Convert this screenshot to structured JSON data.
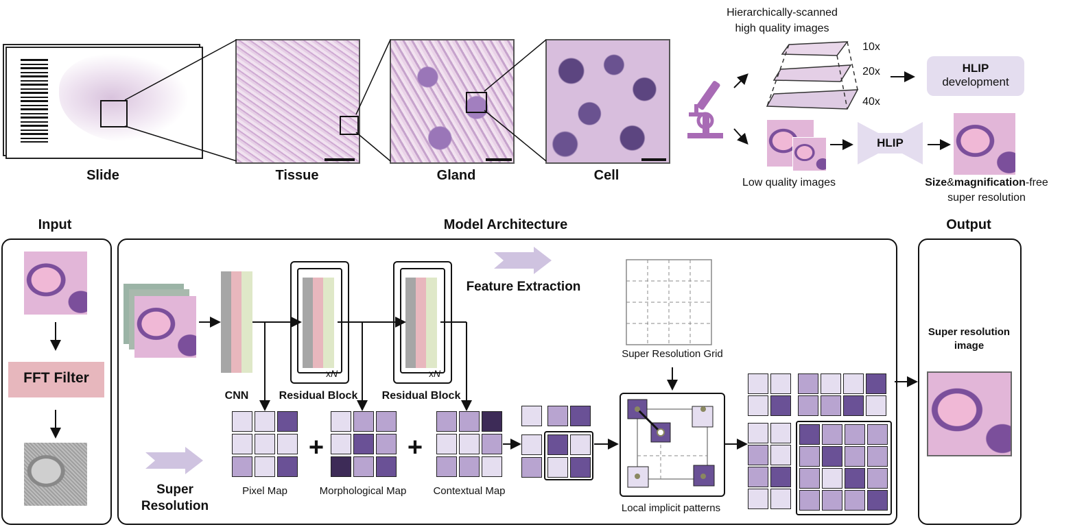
{
  "top": {
    "labels": {
      "slide": "Slide",
      "tissue": "Tissue",
      "gland": "Gland",
      "cell": "Cell"
    },
    "scan_title_line1": "Hierarchically-scanned",
    "scan_title_line2": "high quality images",
    "mag": [
      "10x",
      "20x",
      "40x"
    ],
    "hlip_dev_line1": "HLIP",
    "hlip_dev_line2": "development",
    "low_quality": "Low quality images",
    "hlip": "HLIP",
    "sr_bold1": "Size",
    "sr_amp": "&",
    "sr_bold2": "magnification",
    "sr_rest": "-free",
    "sr_line2": "super resolution"
  },
  "bottom": {
    "input_title": "Input",
    "model_title": "Model Architecture",
    "output_title": "Output",
    "fft": "FFT Filter",
    "feature_extraction": "Feature Extraction",
    "super_line1": "Super",
    "super_line2": "Resolution",
    "cnn": "CNN",
    "res1": "Residual Block",
    "res2": "Residual Block",
    "xn": "x",
    "n": "N",
    "pixel_map": "Pixel Map",
    "morph_map": "Morphological Map",
    "context_map": "Contextual Map",
    "sr_grid": "Super Resolution Grid",
    "local": "Local implicit patterns",
    "sr_image_line1": "Super resolution",
    "sr_image_line2": "image",
    "plus": "+"
  },
  "colors": {
    "light": "#e5def0",
    "mid": "#b8a4d0",
    "dark": "#6a5196",
    "darkest": "#3d2b57",
    "arrow": "#cfc3e0",
    "fft": "#e7b7bd"
  }
}
